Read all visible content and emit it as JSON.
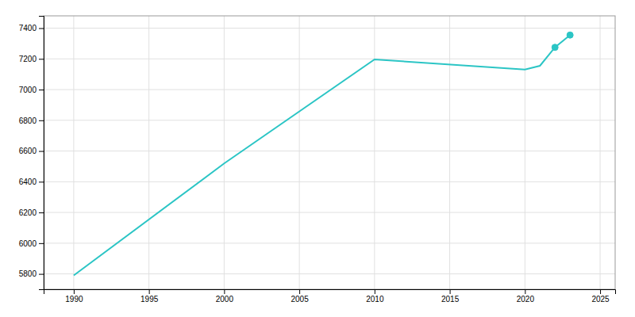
{
  "chart_data": {
    "type": "line",
    "x": [
      1990,
      2000,
      2010,
      2020,
      2021,
      2022,
      2023
    ],
    "series": [
      {
        "type": "line",
        "color": "#2BC5C5",
        "values": [
          5790,
          6519,
          7196,
          7131,
          7155,
          7275,
          7355
        ]
      },
      {
        "type": "scatter",
        "marker": "circle",
        "color": "#2BC5C5",
        "values": [
          null,
          null,
          null,
          null,
          null,
          7275,
          7355
        ]
      }
    ],
    "xlim": [
      1988,
      2026
    ],
    "ylim": [
      5700,
      7480
    ],
    "xticks": [
      1990,
      1995,
      2000,
      2005,
      2010,
      2015,
      2020,
      2025
    ],
    "yticks": [
      5800,
      6000,
      6200,
      6400,
      6600,
      6800,
      7000,
      7200,
      7400
    ],
    "grid": true
  }
}
